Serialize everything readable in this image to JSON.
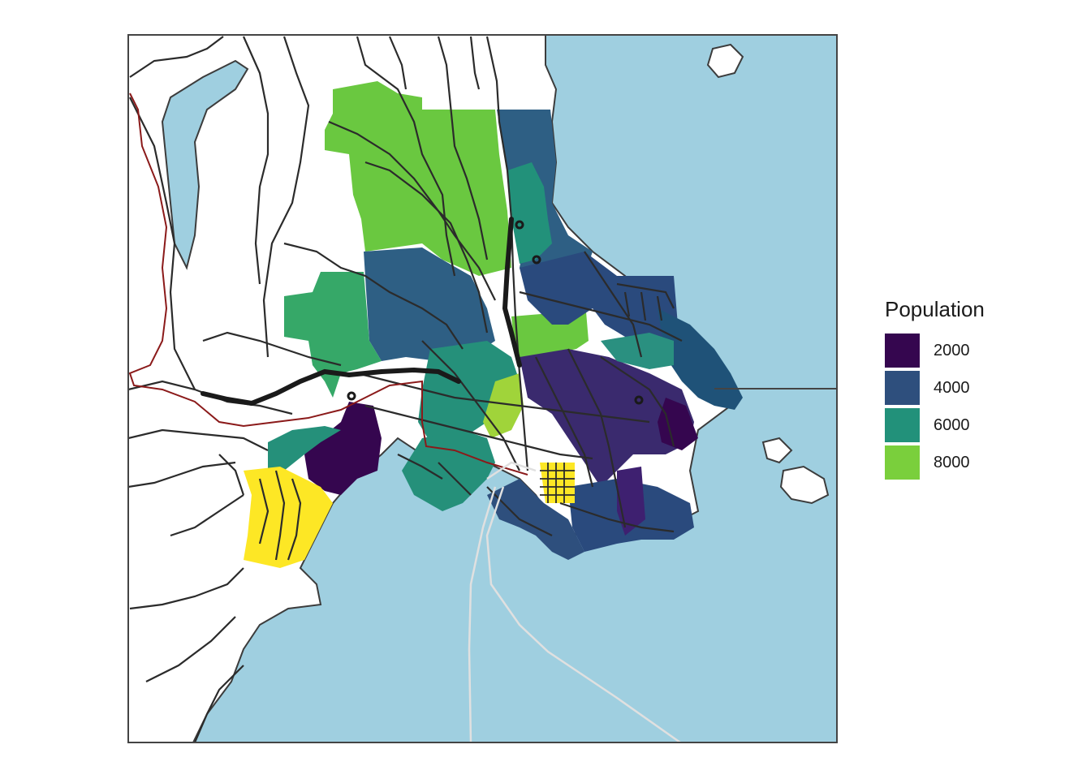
{
  "legend": {
    "title": "Population",
    "items": [
      {
        "label": "2000",
        "value": 2000,
        "color": "#35064f"
      },
      {
        "label": "4000",
        "value": 4000,
        "color": "#2e4f7d"
      },
      {
        "label": "6000",
        "value": 6000,
        "color": "#22917a"
      },
      {
        "label": "8000",
        "value": 8000,
        "color": "#7acf3c"
      }
    ]
  },
  "colors": {
    "sea": "#9fcfe0",
    "land": "#ffffff",
    "road": "#2b2b2b",
    "highway": "#1a1a1a",
    "railway": "#8b1a1a",
    "ferry": "#e0e0e0",
    "border": "#444444",
    "pop_2000": "#35064f",
    "pop_4000": "#2e4f7d",
    "pop_6000": "#22917a",
    "pop_8000": "#7acf3c",
    "pop_max": "#fde725"
  }
}
